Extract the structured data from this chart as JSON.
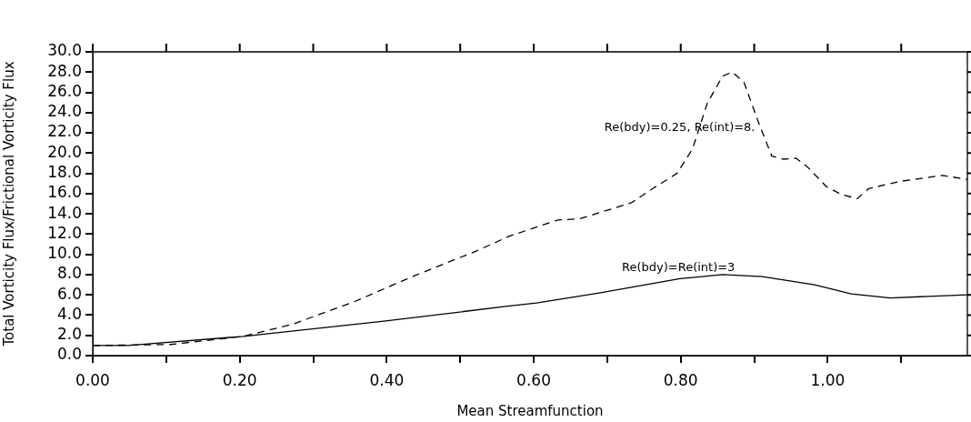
{
  "chart_data": {
    "type": "line",
    "xlabel": "Mean Streamfunction",
    "ylabel": "Total Vorticity Flux/Frictional Vorticity Flux",
    "xlim": [
      0,
      1.19
    ],
    "ylim": [
      0,
      30
    ],
    "xticks": [
      {
        "value": 0,
        "label": "0.00"
      },
      {
        "value": 0.1,
        "label": null
      },
      {
        "value": 0.2,
        "label": "0.20"
      },
      {
        "value": 0.3,
        "label": null
      },
      {
        "value": 0.4,
        "label": "0.40"
      },
      {
        "value": 0.5,
        "label": null
      },
      {
        "value": 0.6,
        "label": "0.60"
      },
      {
        "value": 0.7,
        "label": null
      },
      {
        "value": 0.8,
        "label": "0.80"
      },
      {
        "value": 0.9,
        "label": null
      },
      {
        "value": 1.0,
        "label": "1.00"
      },
      {
        "value": 1.1,
        "label": null
      }
    ],
    "yticks": [
      {
        "value": 0,
        "label": "0.0"
      },
      {
        "value": 2,
        "label": "2.0"
      },
      {
        "value": 4,
        "label": "4.0"
      },
      {
        "value": 6,
        "label": "6.0"
      },
      {
        "value": 8,
        "label": "8.0"
      },
      {
        "value": 10,
        "label": "10.0"
      },
      {
        "value": 12,
        "label": "12.0"
      },
      {
        "value": 14,
        "label": "14.0"
      },
      {
        "value": 16,
        "label": "16.0"
      },
      {
        "value": 18,
        "label": "18.0"
      },
      {
        "value": 20,
        "label": "20.0"
      },
      {
        "value": 22,
        "label": "22.0"
      },
      {
        "value": 24,
        "label": "24.0"
      },
      {
        "value": 26,
        "label": "26.0"
      },
      {
        "value": 28,
        "label": "28.0"
      },
      {
        "value": 30,
        "label": "30.0"
      }
    ],
    "grid": false,
    "legend": false,
    "marker": "none",
    "series": [
      {
        "color": "#000000",
        "line_style": "dashed",
        "x": [
          0,
          0.106,
          0.205,
          0.272,
          0.355,
          0.438,
          0.521,
          0.567,
          0.604,
          0.633,
          0.662,
          0.733,
          0.762,
          0.795,
          0.816,
          0.836,
          0.857,
          0.87,
          0.886,
          0.907,
          0.924,
          0.94,
          0.957,
          0.973,
          0.998,
          1.019,
          1.04,
          1.056,
          1.098,
          1.156,
          1.19
        ],
        "values": [
          1.0,
          1.1,
          1.9,
          3.1,
          5.3,
          7.9,
          10.3,
          11.8,
          12.7,
          13.4,
          13.5,
          15.1,
          16.5,
          18.0,
          20.4,
          24.9,
          27.6,
          28.0,
          27.0,
          22.8,
          19.7,
          19.4,
          19.5,
          18.6,
          16.7,
          15.9,
          15.5,
          16.5,
          17.2,
          17.8,
          17.4
        ]
      },
      {
        "color": "#000000",
        "line_style": "solid",
        "x": [
          0,
          0.048,
          0.205,
          0.396,
          0.567,
          0.604,
          0.691,
          0.799,
          0.857,
          0.911,
          0.982,
          1.032,
          1.085,
          1.19
        ],
        "values": [
          1.0,
          1.0,
          1.9,
          3.4,
          4.9,
          5.2,
          6.2,
          7.6,
          8.0,
          7.8,
          7.0,
          6.1,
          5.7,
          6.0
        ]
      }
    ],
    "annotations": [
      "Re(bdy)=0.25, Re(int)=8.",
      "Re(bdy)=Re(int)=3"
    ]
  }
}
